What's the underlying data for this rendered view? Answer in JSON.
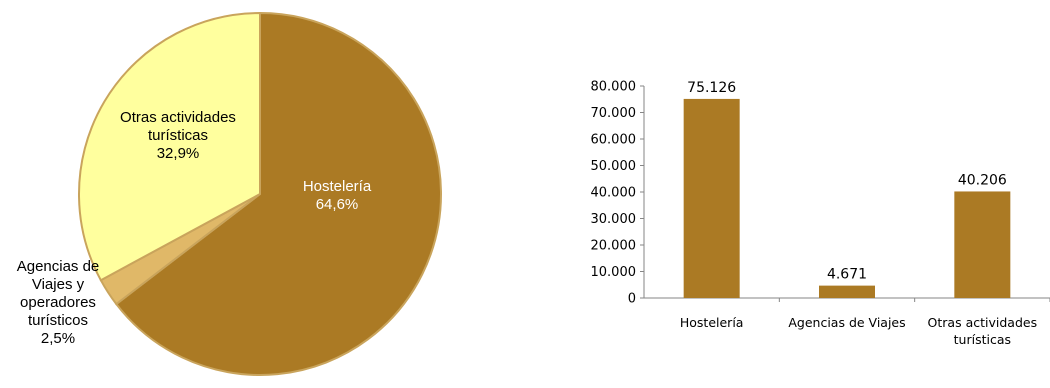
{
  "chart_data": [
    {
      "type": "pie",
      "slices": [
        {
          "label_lines": [
            "Hostelería",
            "64,6%"
          ],
          "value": 64.6,
          "color": "#AB7A24"
        },
        {
          "label_lines": [
            "Agencias de",
            "Viajes y",
            "operadores",
            "turísticos",
            "2,5%"
          ],
          "value": 2.5,
          "color": "#E0B868"
        },
        {
          "label_lines": [
            "Otras actividades",
            "turísticas",
            "32,9%"
          ],
          "value": 32.9,
          "color": "#FFFF9E"
        }
      ],
      "border_color": "#C9A45C"
    },
    {
      "type": "bar",
      "categories": [
        {
          "lines": [
            "Hostelería"
          ]
        },
        {
          "lines": [
            "Agencias de Viajes"
          ]
        },
        {
          "lines": [
            "Otras actividades",
            "turísticas"
          ]
        }
      ],
      "values": [
        75126,
        4671,
        40206
      ],
      "value_labels": [
        "75.126",
        "4.671",
        "40.206"
      ],
      "ylim": [
        0,
        80000
      ],
      "yticks": [
        0,
        10000,
        20000,
        30000,
        40000,
        50000,
        60000,
        70000,
        80000
      ],
      "ytick_labels": [
        "0",
        "10.000",
        "20.000",
        "30.000",
        "40.000",
        "50.000",
        "60.000",
        "70.000",
        "80.000"
      ],
      "bar_color": "#AB7A24",
      "grid": false
    }
  ]
}
